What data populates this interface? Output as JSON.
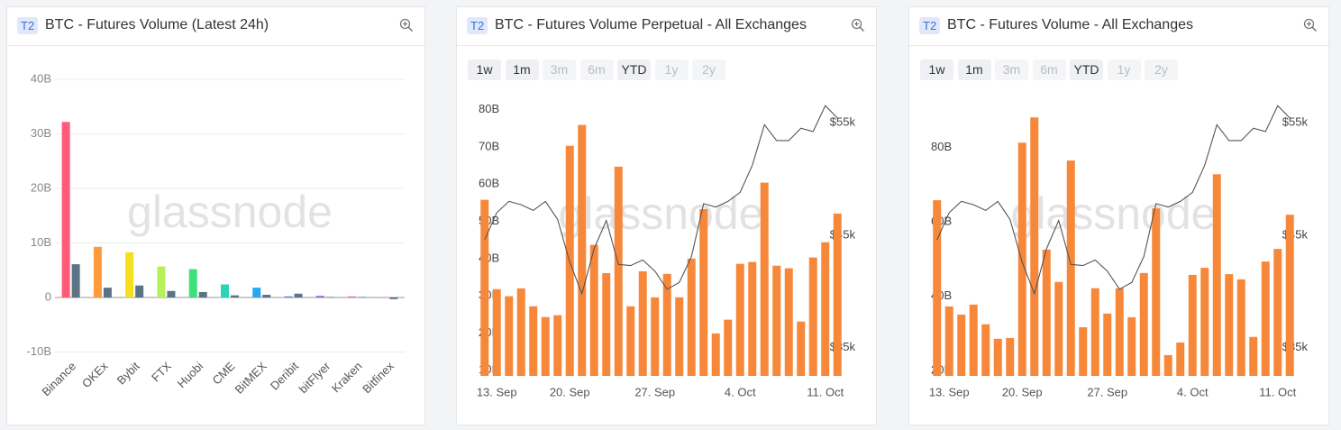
{
  "chart_data": [
    {
      "type": "bar",
      "badge": "T2",
      "title": "BTC - Futures Volume (Latest 24h)",
      "watermark": "glassnode",
      "categories": [
        "Binance",
        "OKEx",
        "Bybit",
        "FTX",
        "Huobi",
        "CME",
        "BitMEX",
        "Deribit",
        "bitFlyer",
        "Kraken",
        "Bitfinex"
      ],
      "series": [
        {
          "colors": [
            "#ff5a78",
            "#ff9a3c",
            "#f5df1f",
            "#b4f25a",
            "#3ee07c",
            "#2cd4b6",
            "#25a8f0",
            "#4c7be8",
            "#9a5ce8",
            "#dd63d4",
            "#e860a0"
          ],
          "values": [
            32.2,
            9.3,
            8.3,
            5.7,
            5.2,
            2.4,
            1.8,
            0.2,
            0.3,
            0.2,
            0.05
          ]
        },
        {
          "color": "#5b7485",
          "values": [
            6.1,
            1.8,
            2.2,
            1.2,
            1.0,
            0.4,
            0.5,
            0.7,
            0.1,
            0.1,
            -0.3
          ]
        }
      ],
      "ylim": [
        -10,
        42
      ],
      "yticks": [
        {
          "value": -10,
          "label": "-10B"
        },
        0,
        {
          "value": 10,
          "label": "10B"
        },
        {
          "value": 20,
          "label": "20B"
        },
        {
          "value": 30,
          "label": "30B"
        },
        {
          "value": 40,
          "label": "40B"
        }
      ],
      "grid": true
    },
    {
      "type": "bar",
      "badge": "T2",
      "title": "BTC - Futures Volume Perpetual - All Exchanges",
      "watermark": "glassnode",
      "range_buttons": [
        "1w",
        "1m",
        "3m",
        "6m",
        "YTD",
        "1y",
        "2y"
      ],
      "range_enabled": [
        true,
        true,
        false,
        false,
        true,
        false,
        false
      ],
      "categories": [
        null,
        "13. Sep",
        null,
        null,
        null,
        null,
        null,
        "20. Sep",
        null,
        null,
        null,
        null,
        null,
        null,
        "27. Sep",
        null,
        null,
        null,
        null,
        null,
        null,
        "4. Oct",
        null,
        null,
        null,
        null,
        null,
        null,
        "11. Oct",
        null
      ],
      "series": [
        {
          "type": "bar",
          "color": "#f7883a",
          "values": [
            55.8,
            31.8,
            29.9,
            32.0,
            27.2,
            24.3,
            24.8,
            70.3,
            75.9,
            43.7,
            36.1,
            64.7,
            27.2,
            36.6,
            29.6,
            35.9,
            29.6,
            40.0,
            53.3,
            19.9,
            23.6,
            38.6,
            39.1,
            60.4,
            38.1,
            37.4,
            23.1,
            40.3,
            44.4,
            52.1
          ]
        },
        {
          "type": "line",
          "axis": "y2",
          "color": "#555555",
          "values": [
            44.6,
            47.0,
            48.0,
            47.7,
            47.2,
            48.0,
            46.4,
            42.6,
            39.8,
            43.8,
            46.3,
            42.4,
            42.3,
            42.8,
            41.8,
            40.2,
            40.8,
            43.1,
            47.8,
            47.5,
            48.0,
            48.8,
            51.2,
            54.8,
            53.4,
            53.4,
            54.5,
            54.2,
            56.5,
            55.4
          ]
        }
      ],
      "ylim": [
        8.5,
        85
      ],
      "yticks": [
        {
          "value": 10,
          "label": "10B"
        },
        {
          "value": 20,
          "label": "20B"
        },
        {
          "value": 30,
          "label": "30B"
        },
        {
          "value": 40,
          "label": "40B"
        },
        {
          "value": 50,
          "label": "50B"
        },
        {
          "value": 60,
          "label": "60B"
        },
        {
          "value": 70,
          "label": "70B"
        },
        {
          "value": 80,
          "label": "80B"
        }
      ],
      "y2lim": [
        32.5,
        57.8
      ],
      "y2ticks": [
        {
          "value": 35,
          "label": "$35k"
        },
        {
          "value": 45,
          "label": "$45k"
        },
        {
          "value": 55,
          "label": "$55k"
        }
      ],
      "grid": false
    },
    {
      "type": "bar",
      "badge": "T2",
      "title": "BTC - Futures Volume - All Exchanges",
      "watermark": "glassnode",
      "range_buttons": [
        "1w",
        "1m",
        "3m",
        "6m",
        "YTD",
        "1y",
        "2y"
      ],
      "range_enabled": [
        true,
        true,
        false,
        false,
        true,
        false,
        false
      ],
      "categories": [
        null,
        "13. Sep",
        null,
        null,
        null,
        null,
        null,
        "20. Sep",
        null,
        null,
        null,
        null,
        null,
        null,
        "27. Sep",
        null,
        null,
        null,
        null,
        null,
        null,
        "4. Oct",
        null,
        null,
        null,
        null,
        null,
        null,
        "11. Oct",
        null
      ],
      "series": [
        {
          "type": "bar",
          "color": "#f7883a",
          "values": [
            65.8,
            37.2,
            35.0,
            37.7,
            32.4,
            28.5,
            28.7,
            81.3,
            88.1,
            52.5,
            43.8,
            76.5,
            31.6,
            42.1,
            35.3,
            42.1,
            34.3,
            46.2,
            63.6,
            24.1,
            27.5,
            45.7,
            47.6,
            72.8,
            45.9,
            44.5,
            29.0,
            49.3,
            52.7,
            61.9
          ]
        },
        {
          "type": "line",
          "axis": "y2",
          "color": "#555555",
          "values": [
            44.6,
            47.0,
            48.0,
            47.7,
            47.2,
            48.0,
            46.4,
            42.6,
            39.8,
            43.8,
            46.3,
            42.4,
            42.3,
            42.8,
            41.8,
            40.2,
            40.8,
            43.1,
            47.8,
            47.5,
            48.0,
            48.8,
            51.2,
            54.8,
            53.4,
            53.4,
            54.5,
            54.2,
            56.5,
            55.4
          ]
        }
      ],
      "ylim": [
        18.5,
        95.2
      ],
      "yticks": [
        {
          "value": 20,
          "label": "20B"
        },
        {
          "value": 40,
          "label": "40B"
        },
        {
          "value": 60,
          "label": "60B"
        },
        {
          "value": 80,
          "label": "80B"
        }
      ],
      "y2lim": [
        32.5,
        57.8
      ],
      "y2ticks": [
        {
          "value": 35,
          "label": "$35k"
        },
        {
          "value": 45,
          "label": "$45k"
        },
        {
          "value": 55,
          "label": "$55k"
        }
      ],
      "grid": false
    }
  ]
}
